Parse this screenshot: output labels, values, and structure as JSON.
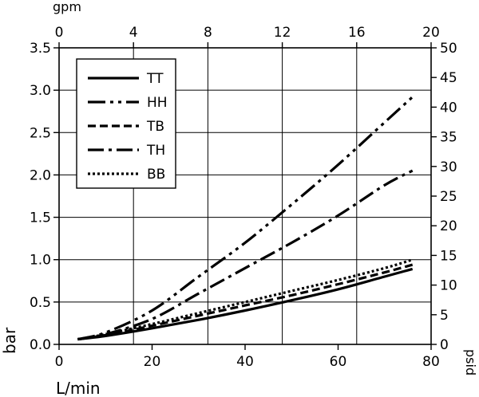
{
  "chart_data": {
    "type": "line",
    "title": "",
    "xlabel": "L/min",
    "ylabel": "bar",
    "x2label": "gpm",
    "y2label": "psid",
    "xlim": [
      0,
      80
    ],
    "ylim": [
      0,
      3.5
    ],
    "x2lim": [
      0,
      20
    ],
    "y2lim": [
      0,
      50
    ],
    "x_ticks": [
      "0",
      "20",
      "40",
      "60",
      "80"
    ],
    "y_ticks": [
      "0.0",
      "0.5",
      "1.0",
      "1.5",
      "2.0",
      "2.5",
      "3.0",
      "3.5"
    ],
    "x2_ticks": [
      "0",
      "4",
      "8",
      "12",
      "16",
      "20"
    ],
    "y2_ticks": [
      "0",
      "5",
      "10",
      "15",
      "20",
      "25",
      "30",
      "35",
      "40",
      "45",
      "50"
    ],
    "grid": true,
    "legend_position": "top-left",
    "series": [
      {
        "name": "TT",
        "style": "solid",
        "x": [
          4,
          10,
          20,
          30,
          40,
          50,
          60,
          70,
          76
        ],
        "y": [
          0.06,
          0.1,
          0.19,
          0.29,
          0.4,
          0.52,
          0.65,
          0.8,
          0.89
        ]
      },
      {
        "name": "HH",
        "style": "dash-dot-dot",
        "x": [
          4,
          10,
          20,
          30,
          40,
          50,
          60,
          70,
          76
        ],
        "y": [
          0.06,
          0.14,
          0.4,
          0.8,
          1.2,
          1.65,
          2.12,
          2.62,
          2.92
        ]
      },
      {
        "name": "TB",
        "style": "dash",
        "x": [
          4,
          10,
          20,
          30,
          40,
          50,
          60,
          70,
          76
        ],
        "y": [
          0.06,
          0.11,
          0.22,
          0.34,
          0.46,
          0.58,
          0.71,
          0.85,
          0.94
        ]
      },
      {
        "name": "TH",
        "style": "dash-dot",
        "x": [
          4,
          10,
          20,
          30,
          40,
          50,
          60,
          70,
          76
        ],
        "y": [
          0.06,
          0.12,
          0.3,
          0.6,
          0.9,
          1.2,
          1.52,
          1.88,
          2.05
        ]
      },
      {
        "name": "BB",
        "style": "dot",
        "x": [
          4,
          10,
          20,
          30,
          40,
          50,
          60,
          70,
          76
        ],
        "y": [
          0.06,
          0.12,
          0.24,
          0.37,
          0.5,
          0.63,
          0.76,
          0.9,
          1.0
        ]
      }
    ]
  }
}
